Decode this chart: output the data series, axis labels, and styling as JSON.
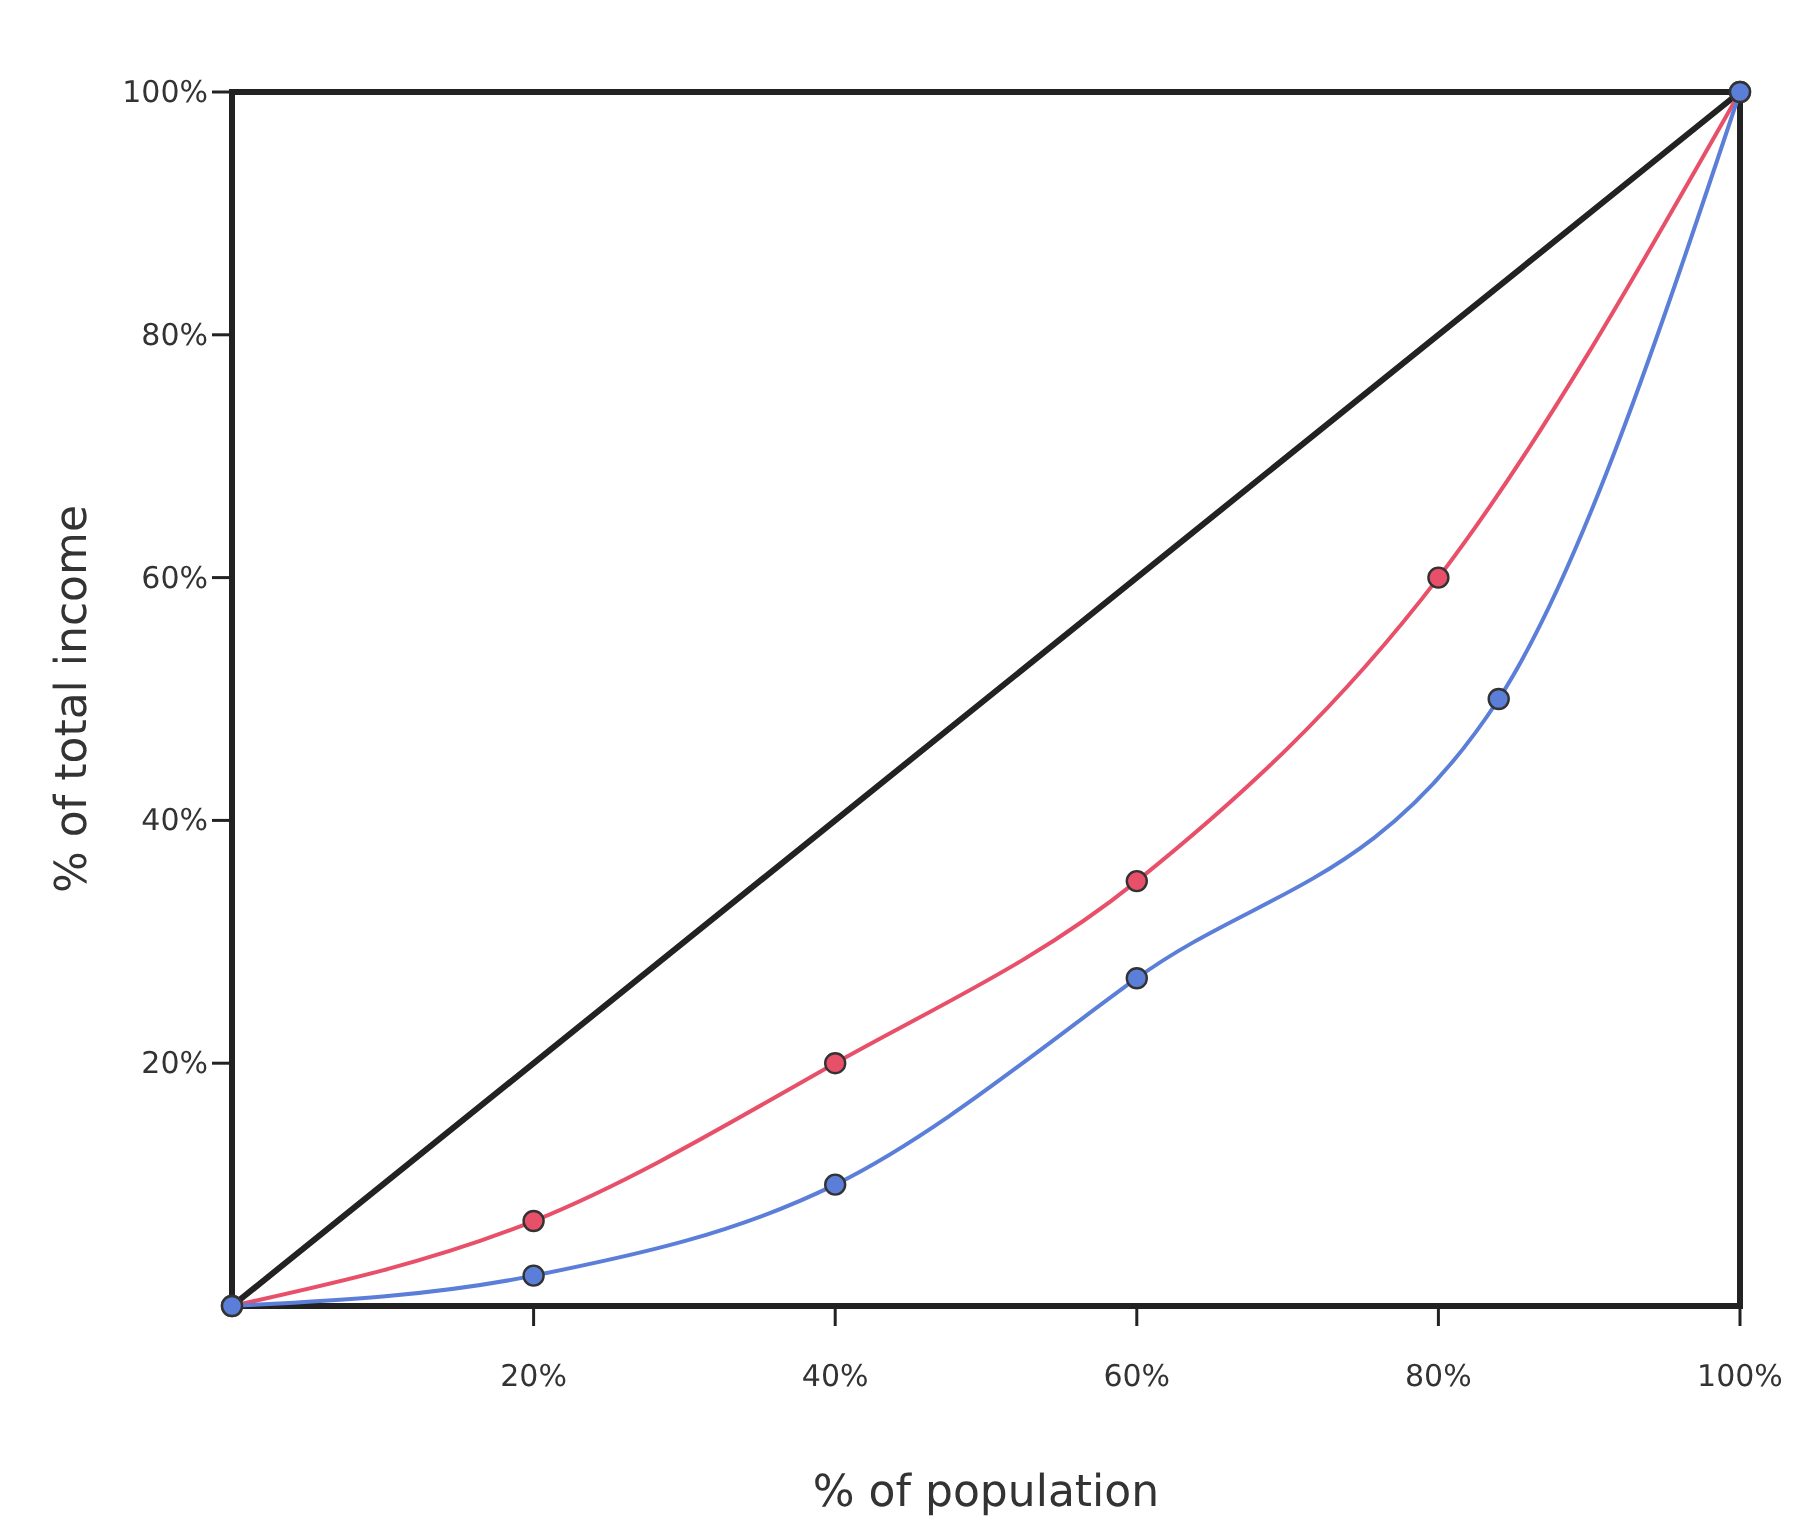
{
  "chart_data": {
    "type": "line",
    "xlabel": "% of population",
    "ylabel": "% of total income",
    "xlim": [
      0,
      100
    ],
    "ylim": [
      0,
      100
    ],
    "xticks": [
      {
        "value": 20,
        "label": "20%"
      },
      {
        "value": 40,
        "label": "40%"
      },
      {
        "value": 60,
        "label": "60%"
      },
      {
        "value": 80,
        "label": "80%"
      },
      {
        "value": 100,
        "label": "100%"
      }
    ],
    "yticks": [
      {
        "value": 20,
        "label": "20%"
      },
      {
        "value": 40,
        "label": "40%"
      },
      {
        "value": 60,
        "label": "60%"
      },
      {
        "value": 80,
        "label": "80%"
      },
      {
        "value": 100,
        "label": "100%"
      }
    ],
    "series": [
      {
        "color": "#222222",
        "x": [
          0,
          100
        ],
        "values": [
          0,
          100
        ],
        "marker": "none"
      },
      {
        "color": "#e8506a",
        "x": [
          0,
          20,
          40,
          60,
          80,
          100
        ],
        "values": [
          0,
          7,
          20,
          35,
          60,
          100
        ],
        "marker": "circle"
      },
      {
        "color": "#5b7fd8",
        "x": [
          0,
          20,
          40,
          60,
          84,
          100
        ],
        "values": [
          0,
          2.5,
          10,
          27,
          50,
          100
        ],
        "marker": "circle"
      }
    ],
    "grid": false,
    "line_style": "solid"
  }
}
